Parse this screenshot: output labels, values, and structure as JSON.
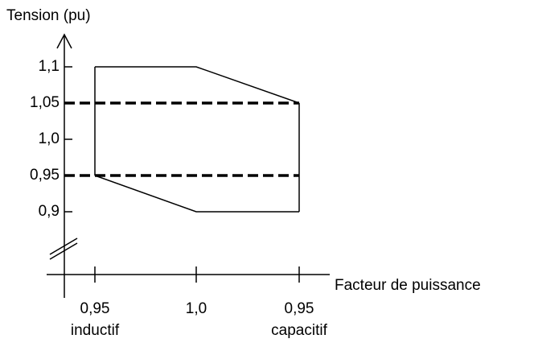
{
  "chart_data": {
    "type": "envelope",
    "y_label": "Tension (pu)",
    "x_label": "Facteur de puissance",
    "categories": [
      "0,95",
      "1,0",
      "0,95"
    ],
    "category_notes": [
      "inductif",
      null,
      "capacitif"
    ],
    "series": [
      {
        "color": "#000000",
        "values": [
          1.1,
          1.1,
          1.05
        ]
      },
      {
        "color": "#000000",
        "values": [
          0.95,
          0.9,
          0.9
        ]
      }
    ],
    "hlines": [
      1.05,
      0.95
    ],
    "ylim": [
      0.9,
      1.1
    ],
    "yticks": [
      {
        "value": 0.9,
        "label": "0,9"
      },
      {
        "value": 0.95,
        "label": "0,95"
      },
      {
        "value": 1.0,
        "label": "1,0"
      },
      {
        "value": 1.05,
        "label": "1,05"
      },
      {
        "value": 1.1,
        "label": "1,1"
      }
    ],
    "axis_break": true
  }
}
